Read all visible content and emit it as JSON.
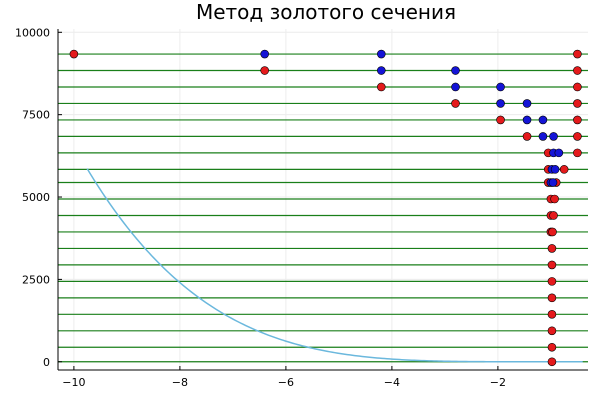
{
  "chart_data": {
    "type": "scatter",
    "title": "Метод золотого сечения",
    "xlabel": "",
    "ylabel": "",
    "xlim": [
      -10.3,
      -0.3
    ],
    "ylim": [
      -250,
      10100
    ],
    "grid": true,
    "legend": "none",
    "x_ticks": [
      -10,
      -8,
      -6,
      -4,
      -2
    ],
    "x_tick_labels": [
      "−10",
      "−8",
      "−6",
      "−4",
      "−2"
    ],
    "y_ticks": [
      0,
      2500,
      5000,
      7500,
      10000
    ],
    "y_tick_labels": [
      "0",
      "2500",
      "5000",
      "7500",
      "10000"
    ],
    "colors": {
      "curve": "#6bb8dd",
      "hline": "#1a7f1a",
      "red": "#e41a1c",
      "blue": "#1414d6",
      "grid": "#ececec",
      "axis": "#000000"
    },
    "curve": {
      "name": "",
      "note": "y = (x + 1)^4",
      "x_range": [
        -9.75,
        -0.4
      ]
    },
    "hlines": [
      9340,
      8840,
      8340,
      7840,
      7340,
      6840,
      6340,
      5840,
      5440,
      4940,
      4440,
      3940,
      3440,
      2940,
      2440,
      1940,
      1440,
      940,
      440,
      0
    ],
    "red_points": [
      {
        "x": -10.0,
        "y": 9340
      },
      {
        "x": -0.5,
        "y": 9340
      },
      {
        "x": -6.4,
        "y": 8840
      },
      {
        "x": -0.5,
        "y": 8840
      },
      {
        "x": -4.2,
        "y": 8340
      },
      {
        "x": -0.5,
        "y": 8340
      },
      {
        "x": -2.8,
        "y": 7840
      },
      {
        "x": -0.5,
        "y": 7840
      },
      {
        "x": -1.95,
        "y": 7340
      },
      {
        "x": -0.5,
        "y": 7340
      },
      {
        "x": -1.45,
        "y": 6840
      },
      {
        "x": -0.5,
        "y": 6840
      },
      {
        "x": -1.05,
        "y": 6340
      },
      {
        "x": -0.5,
        "y": 6340
      },
      {
        "x": -1.05,
        "y": 5840
      },
      {
        "x": -0.75,
        "y": 5840
      },
      {
        "x": -1.05,
        "y": 5440
      },
      {
        "x": -0.9,
        "y": 5440
      },
      {
        "x": -1.0,
        "y": 4940
      },
      {
        "x": -0.93,
        "y": 4940
      },
      {
        "x": -1.0,
        "y": 4440
      },
      {
        "x": -0.95,
        "y": 4440
      },
      {
        "x": -1.0,
        "y": 3940
      },
      {
        "x": -0.97,
        "y": 3940
      },
      {
        "x": -0.98,
        "y": 3440
      },
      {
        "x": -0.98,
        "y": 2940
      },
      {
        "x": -0.98,
        "y": 2440
      },
      {
        "x": -0.98,
        "y": 1940
      },
      {
        "x": -0.98,
        "y": 1440
      },
      {
        "x": -0.98,
        "y": 940
      },
      {
        "x": -0.98,
        "y": 440
      },
      {
        "x": -0.98,
        "y": 0
      }
    ],
    "blue_points": [
      {
        "x": -6.4,
        "y": 9340
      },
      {
        "x": -4.2,
        "y": 9340
      },
      {
        "x": -4.2,
        "y": 8840
      },
      {
        "x": -2.8,
        "y": 8840
      },
      {
        "x": -2.8,
        "y": 8340
      },
      {
        "x": -1.95,
        "y": 8340
      },
      {
        "x": -1.95,
        "y": 7840
      },
      {
        "x": -1.45,
        "y": 7840
      },
      {
        "x": -1.45,
        "y": 7340
      },
      {
        "x": -1.15,
        "y": 7340
      },
      {
        "x": -1.15,
        "y": 6840
      },
      {
        "x": -0.95,
        "y": 6840
      },
      {
        "x": -0.95,
        "y": 6340
      },
      {
        "x": -0.85,
        "y": 6340
      },
      {
        "x": -0.98,
        "y": 5840
      },
      {
        "x": -0.92,
        "y": 5840
      },
      {
        "x": -1.0,
        "y": 5440
      },
      {
        "x": -0.96,
        "y": 5440
      }
    ]
  }
}
